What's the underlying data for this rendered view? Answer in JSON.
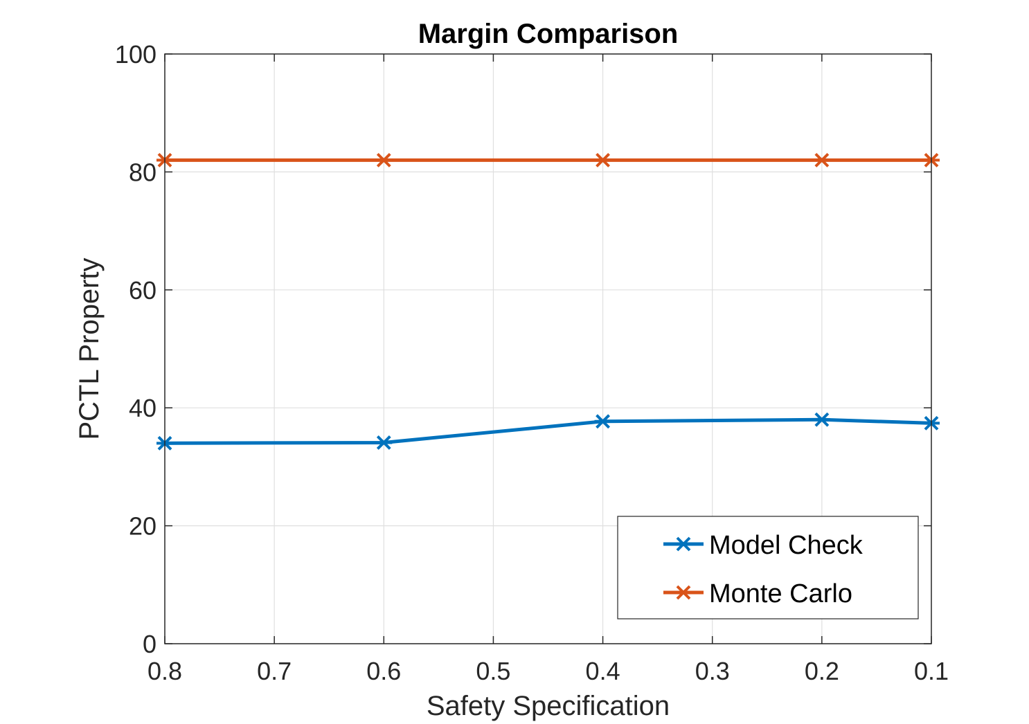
{
  "chart_data": {
    "type": "line",
    "title": "Margin Comparison",
    "xlabel": "Safety Specification",
    "ylabel": "PCTL Property",
    "x_ticks": [
      "0.8",
      "0.7",
      "0.6",
      "0.5",
      "0.4",
      "0.3",
      "0.2",
      "0.1"
    ],
    "y_ticks": [
      "0",
      "20",
      "40",
      "60",
      "80",
      "100"
    ],
    "xlim": [
      0.8,
      0.1
    ],
    "ylim": [
      0,
      100
    ],
    "x_reversed": true,
    "grid": true,
    "legend_position": "bottom-right",
    "series": [
      {
        "name": "Model Check",
        "color": "#0072BD",
        "marker": "x-star",
        "x": [
          0.8,
          0.6,
          0.4,
          0.2,
          0.1
        ],
        "y": [
          34.0,
          34.1,
          37.7,
          38.0,
          37.4
        ]
      },
      {
        "name": "Monte Carlo",
        "color": "#D95319",
        "marker": "x-star",
        "x": [
          0.8,
          0.6,
          0.4,
          0.2,
          0.1
        ],
        "y": [
          82.0,
          82.0,
          82.0,
          82.0,
          82.0
        ]
      }
    ]
  }
}
